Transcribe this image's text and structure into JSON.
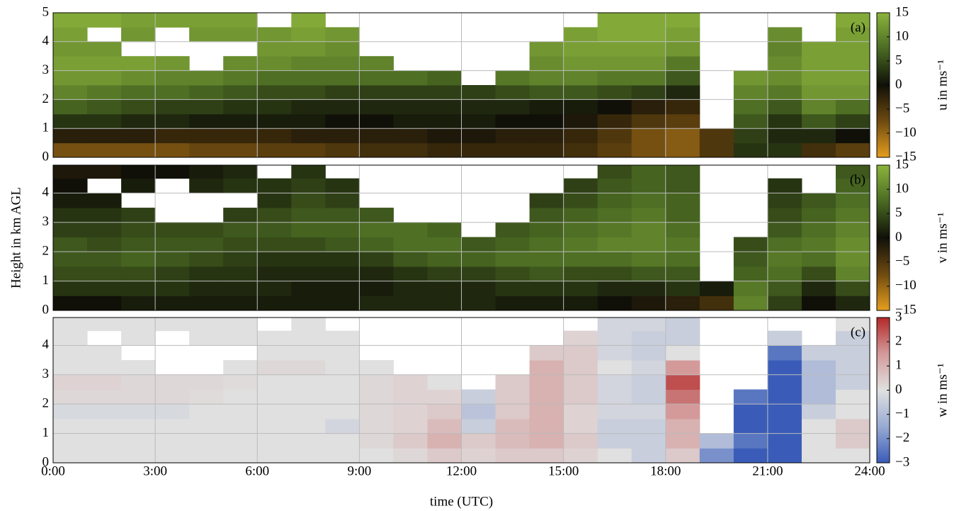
{
  "chart_data": [
    {
      "type": "heatmap",
      "label": "(a)",
      "clabel": "u in ms⁻¹",
      "x": [
        0,
        1,
        2,
        3,
        4,
        5,
        6,
        7,
        8,
        9,
        10,
        11,
        12,
        13,
        14,
        15,
        16,
        17,
        18,
        19,
        20,
        21,
        22,
        23,
        24
      ],
      "y": [
        0,
        0.5,
        1,
        1.5,
        2,
        2.5,
        3,
        3.5,
        4,
        4.5,
        5
      ],
      "values": [
        [
          -8,
          -8,
          -8,
          -8,
          -7,
          -7,
          -6,
          -6,
          -5,
          -4,
          -4,
          -3,
          -3,
          -3,
          -3,
          -4,
          -6,
          -8,
          -9,
          -5,
          3,
          3,
          -4,
          -6
        ],
        [
          -2,
          -2,
          -2,
          -3,
          -3,
          -3,
          -3,
          -2,
          -2,
          -2,
          -2,
          -1,
          -1,
          -2,
          -2,
          -3,
          -5,
          -8,
          -9,
          -5,
          4,
          2,
          2,
          0
        ],
        [
          3,
          3,
          2,
          2,
          1,
          1,
          1,
          1,
          0,
          0,
          1,
          1,
          1,
          0,
          0,
          -1,
          -3,
          -5,
          -6,
          null,
          6,
          3,
          6,
          4
        ],
        [
          7,
          6,
          5,
          4,
          4,
          3,
          3,
          2,
          2,
          2,
          2,
          2,
          2,
          2,
          1,
          1,
          0,
          -2,
          -3,
          null,
          8,
          6,
          10,
          8
        ],
        [
          10,
          9,
          8,
          8,
          7,
          6,
          5,
          5,
          4,
          4,
          4,
          4,
          4,
          5,
          6,
          6,
          5,
          4,
          2,
          null,
          10,
          9,
          12,
          12
        ],
        [
          12,
          12,
          11,
          10,
          10,
          9,
          8,
          8,
          8,
          8,
          8,
          7,
          null,
          9,
          10,
          10,
          9,
          9,
          6,
          null,
          12,
          11,
          13,
          13
        ],
        [
          13,
          13,
          13,
          12,
          null,
          11,
          11,
          10,
          10,
          10,
          null,
          null,
          null,
          null,
          11,
          12,
          12,
          12,
          9,
          null,
          null,
          11,
          13,
          13
        ],
        [
          12,
          12,
          null,
          null,
          null,
          null,
          12,
          12,
          11,
          null,
          null,
          null,
          null,
          null,
          12,
          13,
          13,
          13,
          12,
          null,
          null,
          10,
          13,
          13
        ],
        [
          13,
          null,
          12,
          null,
          12,
          12,
          12,
          13,
          12,
          null,
          null,
          null,
          null,
          null,
          null,
          13,
          14,
          14,
          13,
          null,
          null,
          11,
          null,
          13
        ],
        [
          14,
          14,
          13,
          13,
          13,
          13,
          null,
          14,
          null,
          null,
          null,
          null,
          null,
          null,
          null,
          null,
          14,
          14,
          14,
          null,
          null,
          null,
          null,
          14
        ]
      ],
      "xlim": [
        0,
        24
      ],
      "ylim": [
        0,
        5
      ],
      "yticks": [
        0,
        1,
        2,
        3,
        4,
        5
      ],
      "clim": [
        -15,
        15
      ],
      "cticks": [
        15,
        10,
        5,
        0,
        {
          "value": -5,
          "label": "−5"
        },
        {
          "value": -10,
          "label": "−10"
        },
        {
          "value": -15,
          "label": "−15"
        }
      ],
      "cmap": [
        "#e69e1e",
        "#6e4a10",
        "#101008",
        "#4a6a22",
        "#8cb43c"
      ]
    },
    {
      "type": "heatmap",
      "label": "(b)",
      "clabel": "v in ms⁻¹",
      "ylabel": "Height in km AGL",
      "x": [
        0,
        1,
        2,
        3,
        4,
        5,
        6,
        7,
        8,
        9,
        10,
        11,
        12,
        13,
        14,
        15,
        16,
        17,
        18,
        19,
        20,
        21,
        22,
        23,
        24
      ],
      "y": [
        0,
        0.5,
        1,
        1.5,
        2,
        2.5,
        3,
        3.5,
        4,
        4.5,
        5
      ],
      "values": [
        [
          0,
          0,
          1,
          1,
          1,
          1,
          1,
          1,
          1,
          2,
          2,
          2,
          2,
          1,
          1,
          1,
          0,
          -1,
          -2,
          -4,
          10,
          4,
          0,
          2
        ],
        [
          3,
          3,
          3,
          3,
          2,
          2,
          2,
          1,
          1,
          1,
          2,
          2,
          2,
          3,
          3,
          3,
          2,
          2,
          3,
          1,
          9,
          6,
          2,
          5
        ],
        [
          5,
          5,
          5,
          4,
          3,
          3,
          2,
          2,
          2,
          2,
          3,
          4,
          4,
          5,
          6,
          5,
          5,
          6,
          6,
          null,
          7,
          8,
          5,
          10
        ],
        [
          6,
          6,
          7,
          6,
          5,
          4,
          3,
          3,
          3,
          4,
          6,
          7,
          7,
          8,
          8,
          8,
          8,
          9,
          8,
          null,
          6,
          9,
          8,
          11
        ],
        [
          6,
          5,
          6,
          6,
          6,
          5,
          5,
          5,
          6,
          7,
          8,
          8,
          6,
          7,
          8,
          9,
          10,
          10,
          9,
          null,
          5,
          8,
          9,
          11
        ],
        [
          4,
          4,
          5,
          5,
          5,
          6,
          6,
          7,
          7,
          8,
          8,
          7,
          null,
          6,
          7,
          8,
          9,
          10,
          8,
          null,
          null,
          6,
          8,
          10
        ],
        [
          3,
          3,
          4,
          null,
          null,
          4,
          5,
          6,
          6,
          6,
          null,
          null,
          null,
          null,
          6,
          7,
          8,
          9,
          7,
          null,
          null,
          5,
          7,
          9
        ],
        [
          1,
          1,
          null,
          null,
          null,
          null,
          3,
          5,
          4,
          null,
          null,
          null,
          null,
          null,
          4,
          5,
          7,
          8,
          7,
          null,
          null,
          4,
          6,
          8
        ],
        [
          0,
          null,
          1,
          null,
          2,
          3,
          3,
          4,
          3,
          null,
          null,
          null,
          null,
          null,
          null,
          4,
          6,
          7,
          6,
          null,
          null,
          3,
          null,
          7
        ],
        [
          -1,
          -1,
          0,
          0,
          1,
          2,
          null,
          3,
          null,
          null,
          null,
          null,
          null,
          null,
          null,
          null,
          5,
          7,
          6,
          null,
          null,
          null,
          null,
          6
        ]
      ],
      "xlim": [
        0,
        24
      ],
      "ylim": [
        0,
        4.95
      ],
      "yticks": [
        0,
        1,
        2,
        3,
        4
      ],
      "clim": [
        -15,
        15
      ],
      "cticks": [
        15,
        10,
        5,
        0,
        {
          "value": -5,
          "label": "−5"
        },
        {
          "value": -10,
          "label": "−10"
        },
        {
          "value": -15,
          "label": "−15"
        }
      ],
      "cmap": [
        "#e69e1e",
        "#6e4a10",
        "#101008",
        "#4a6a22",
        "#8cb43c"
      ]
    },
    {
      "type": "heatmap",
      "label": "(c)",
      "clabel": "w in ms⁻¹",
      "xlabel": "time (UTC)",
      "x": [
        0,
        1,
        2,
        3,
        4,
        5,
        6,
        7,
        8,
        9,
        10,
        11,
        12,
        13,
        14,
        15,
        16,
        17,
        18,
        19,
        20,
        21,
        22,
        23,
        24
      ],
      "y": [
        0,
        0.5,
        1,
        1.5,
        2,
        2.5,
        3,
        3.5,
        4,
        4.5,
        5
      ],
      "values": [
        [
          0,
          0,
          0,
          0,
          0,
          0,
          0,
          0,
          0,
          0,
          0.2,
          0.5,
          0.3,
          0.5,
          0.5,
          0.3,
          0,
          -0.5,
          0.5,
          -2,
          -3,
          -3,
          0,
          0
        ],
        [
          0,
          0,
          0,
          0,
          0,
          0,
          0,
          0,
          0,
          0.2,
          0.5,
          1,
          0.5,
          0.8,
          1,
          0.5,
          -0.5,
          -0.5,
          1,
          -1,
          -2.5,
          -3,
          0,
          0.5
        ],
        [
          0,
          0,
          0,
          0,
          0,
          0,
          0,
          0,
          -0.3,
          0.2,
          0.3,
          0.8,
          -0.5,
          0.8,
          1,
          0.3,
          -0.5,
          -0.5,
          1,
          null,
          -3,
          -3,
          0,
          0.5
        ],
        [
          -0.2,
          -0.2,
          -0.2,
          -0.2,
          0,
          0,
          0,
          0,
          0,
          0.2,
          0.3,
          0.5,
          -0.8,
          0.5,
          1,
          0.3,
          -0.3,
          -0.3,
          1.5,
          null,
          -3,
          -3,
          -0.5,
          0
        ],
        [
          0.2,
          0.2,
          0.2,
          0.2,
          0.1,
          0,
          0,
          0,
          0,
          0.2,
          0.3,
          0.3,
          -0.5,
          0.5,
          1,
          0.5,
          -0.3,
          -0.5,
          2,
          null,
          -2.5,
          -3,
          -1,
          0
        ],
        [
          0.3,
          0.3,
          0.2,
          0.2,
          0.2,
          0.1,
          0,
          0,
          0,
          0.2,
          0.3,
          0,
          null,
          0.5,
          1,
          0.5,
          -0.3,
          -0.5,
          2.5,
          null,
          null,
          -3,
          -1,
          -0.5
        ],
        [
          0,
          0,
          0,
          null,
          null,
          0,
          0.2,
          0.2,
          0,
          0,
          null,
          null,
          null,
          null,
          1,
          0.5,
          0,
          -0.3,
          1.5,
          null,
          null,
          -3,
          -1,
          -0.5
        ],
        [
          0,
          0,
          null,
          null,
          null,
          null,
          0,
          0,
          0,
          null,
          null,
          null,
          null,
          null,
          0.5,
          0.5,
          -0.3,
          -0.5,
          0,
          null,
          null,
          -2.5,
          -0.5,
          -0.5
        ],
        [
          0,
          null,
          0,
          null,
          0,
          0,
          0,
          0,
          0,
          null,
          null,
          null,
          null,
          null,
          null,
          0.3,
          -0.3,
          -0.5,
          -0.5,
          null,
          null,
          -0.5,
          null,
          -0.5
        ],
        [
          0,
          0,
          0,
          0,
          0,
          0,
          null,
          0,
          null,
          null,
          null,
          null,
          null,
          null,
          null,
          null,
          -0.3,
          -0.3,
          -0.5,
          null,
          null,
          null,
          null,
          0
        ]
      ],
      "xlim": [
        0,
        24
      ],
      "ylim": [
        0,
        4.95
      ],
      "yticks": [
        0,
        1,
        2,
        3,
        4
      ],
      "xticks": [
        {
          "value": 0,
          "label": "0:00"
        },
        {
          "value": 3,
          "label": "3:00"
        },
        {
          "value": 6,
          "label": "6:00"
        },
        {
          "value": 9,
          "label": "9:00"
        },
        {
          "value": 12,
          "label": "12:00"
        },
        {
          "value": 15,
          "label": "15:00"
        },
        {
          "value": 18,
          "label": "18:00"
        },
        {
          "value": 21,
          "label": "21:00"
        },
        {
          "value": 24,
          "label": "24:00"
        }
      ],
      "clim": [
        -3,
        3
      ],
      "cticks": [
        3,
        2,
        1,
        0,
        {
          "value": -1,
          "label": "−1"
        },
        {
          "value": -2,
          "label": "−2"
        },
        {
          "value": -3,
          "label": "−3"
        }
      ],
      "cmap": [
        "#3a5cb8",
        "#98aad4",
        "#e0e0e0",
        "#d49a9a",
        "#b42828"
      ]
    }
  ]
}
